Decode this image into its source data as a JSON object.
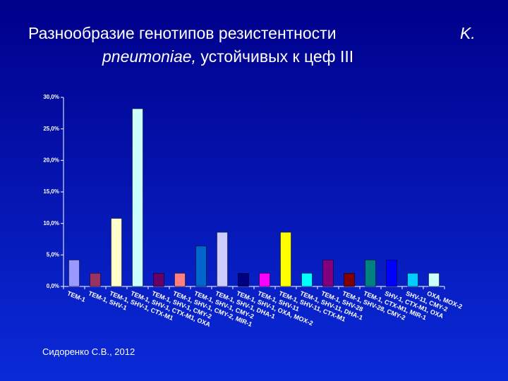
{
  "chart_data": {
    "type": "bar",
    "title": {
      "line1": "Разнообразие генотипов резистентности",
      "species_initial": "K.",
      "species": "pneumoniae,",
      "line2": "устойчивых к цеф III"
    },
    "source": "Сидоренко С.В., 2012",
    "categories": [
      "TEM-1",
      "TEM-1, SHV-1",
      "TEM-1, SHV-1, CTX-M1",
      "TEM-1, SHV-1, CTX-M1, OXA",
      "TEM-1, SHV-1, CMY-2",
      "TEM-1, SHV-1, CMY-2, MIR-1",
      "TEM-1, SHV-1, CMY-2",
      "TEM-1, SHV-1, DHA-1",
      "TEM-1, SHV-1, OXA, MOX-2",
      "TEM-1, SHV-11",
      "TEM-1, SHV-11, CTX-M1",
      "TEM-1, SHV-11, DHA-1",
      "TEM-1, SHV-28",
      "TEM-1, SHV-28, CMY-2",
      "TEM-1, CTX-M1, MIR-1",
      "SHV-1, CTX-M1, OXA",
      "SHV-11, CMY-2",
      "OXA, MOX-2"
    ],
    "values": [
      4.2,
      2.1,
      10.8,
      28.2,
      2.1,
      2.1,
      6.4,
      8.6,
      2.1,
      2.1,
      8.6,
      2.1,
      4.2,
      2.1,
      4.2,
      4.2,
      2.1,
      2.1
    ],
    "colors": [
      "#9999ff",
      "#993366",
      "#ffffcc",
      "#ccffff",
      "#660066",
      "#ff8080",
      "#0066cc",
      "#ccccff",
      "#000080",
      "#ff00ff",
      "#ffff00",
      "#00ffff",
      "#800080",
      "#800000",
      "#008080",
      "#0000ff",
      "#00ccff",
      "#ccffff"
    ],
    "ylim": [
      0,
      30
    ],
    "yticks": [
      {
        "value": 0,
        "label": "0,0%"
      },
      {
        "value": 5,
        "label": "5,0%"
      },
      {
        "value": 10,
        "label": "10,0%"
      },
      {
        "value": 15,
        "label": "15,0%"
      },
      {
        "value": 20,
        "label": "20,0%"
      },
      {
        "value": 25,
        "label": "25,0%"
      },
      {
        "value": 30,
        "label": "30,0%"
      }
    ],
    "grid": false
  }
}
